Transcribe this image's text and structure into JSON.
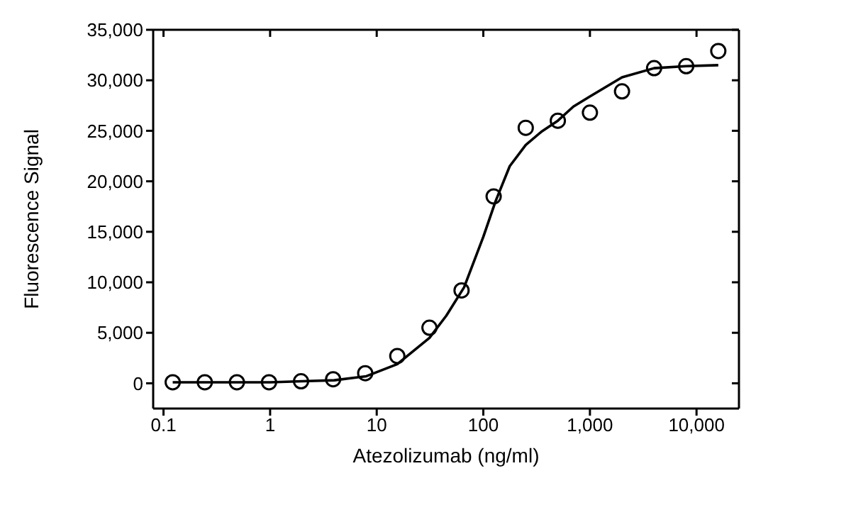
{
  "chart_data": {
    "type": "scatter",
    "xlabel": "Atezolizumab (ng/ml)",
    "ylabel": "Fluorescence Signal",
    "log": "x",
    "marker": "circle",
    "xlim": [
      0.08,
      25000
    ],
    "xticks": [
      0.1,
      1,
      10,
      100,
      {
        "value": 1000,
        "label": "1,000"
      },
      {
        "value": 10000,
        "label": "10,000"
      }
    ],
    "ylim": [
      -2500,
      35000
    ],
    "yticks": [
      0,
      {
        "value": 5000,
        "label": "5,000"
      },
      {
        "value": 10000,
        "label": "10,000"
      },
      {
        "value": 15000,
        "label": "15,000"
      },
      {
        "value": 20000,
        "label": "20,000"
      },
      {
        "value": 25000,
        "label": "25,000"
      },
      {
        "value": 30000,
        "label": "30,000"
      },
      {
        "value": 35000,
        "label": "35,000"
      }
    ],
    "series": [
      {
        "type": "scatter",
        "color": "#000000",
        "x": [
          0.122,
          0.244,
          0.488,
          0.977,
          1.95,
          3.9,
          7.8,
          15.6,
          31.25,
          62.5,
          125,
          250,
          500,
          1000,
          2000,
          4000,
          8000,
          16000
        ],
        "values": [
          100,
          100,
          100,
          100,
          200,
          400,
          1000,
          2700,
          5500,
          9200,
          18500,
          25300,
          26000,
          26800,
          28900,
          31200,
          31400,
          32900
        ]
      },
      {
        "type": "line",
        "color": "#000000",
        "marker": "none",
        "line_style": "solid",
        "x": [
          0.122,
          0.5,
          1,
          2,
          4,
          8,
          15.6,
          31.25,
          45,
          66,
          100,
          130,
          177,
          250,
          350,
          500,
          700,
          1000,
          2000,
          4000,
          8000,
          16000
        ],
        "values": [
          100,
          100,
          100,
          200,
          300,
          700,
          1900,
          4500,
          6700,
          9500,
          14500,
          18000,
          21500,
          23600,
          24900,
          26000,
          27400,
          28400,
          30300,
          31200,
          31400,
          31500
        ]
      }
    ]
  }
}
